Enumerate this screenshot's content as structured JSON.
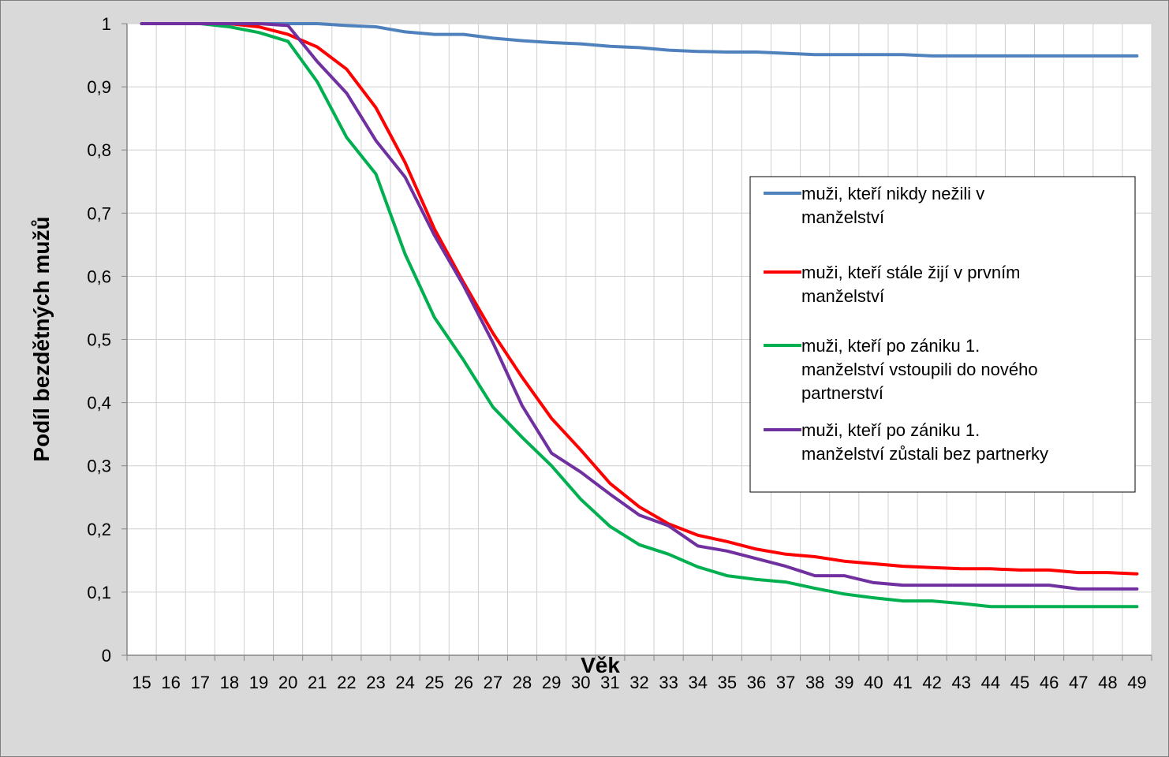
{
  "chart_data": {
    "type": "line",
    "title": "",
    "xlabel": "Věk",
    "ylabel": "Podíl bezdětných mužů",
    "x": [
      15,
      16,
      17,
      18,
      19,
      20,
      21,
      22,
      23,
      24,
      25,
      26,
      27,
      28,
      29,
      30,
      31,
      32,
      33,
      34,
      35,
      36,
      37,
      38,
      39,
      40,
      41,
      42,
      43,
      44,
      45,
      46,
      47,
      48,
      49
    ],
    "x_tick_labels": [
      "15",
      "16",
      "17",
      "18",
      "19",
      "20",
      "21",
      "22",
      "23",
      "24",
      "25",
      "26",
      "27",
      "28",
      "29",
      "30",
      "31",
      "32",
      "33",
      "34",
      "35",
      "36",
      "37",
      "38",
      "39",
      "40",
      "41",
      "42",
      "43",
      "44",
      "45",
      "46",
      "47",
      "48",
      "49"
    ],
    "ylim": [
      0,
      1
    ],
    "y_tick_labels": [
      "0",
      "0,1",
      "0,2",
      "0,3",
      "0,4",
      "0,5",
      "0,6",
      "0,7",
      "0,8",
      "0,9",
      "1"
    ],
    "grid": true,
    "legend_position": "right-middle",
    "series": [
      {
        "name": "muži, kteří nikdy nežili v manželství",
        "legend_lines": [
          "muži, kteří nikdy nežili v",
          "manželství"
        ],
        "color": "#4f81bd",
        "values": [
          1,
          1,
          1,
          1,
          1,
          1,
          1,
          0.997,
          0.995,
          0.987,
          0.983,
          0.983,
          0.977,
          0.973,
          0.97,
          0.968,
          0.964,
          0.962,
          0.958,
          0.956,
          0.955,
          0.955,
          0.953,
          0.951,
          0.951,
          0.951,
          0.951,
          0.949,
          0.949,
          0.949,
          0.949,
          0.949,
          0.949,
          0.949,
          0.949
        ]
      },
      {
        "name": "muži, kteří stále žijí v prvním manželství",
        "legend_lines": [
          "muži, kteří stále žijí v prvním",
          "manželství"
        ],
        "color": "#ff0000",
        "values": [
          1,
          1,
          1,
          1,
          0.995,
          0.983,
          0.963,
          0.928,
          0.867,
          0.78,
          0.675,
          0.59,
          0.51,
          0.44,
          0.375,
          0.325,
          0.272,
          0.235,
          0.208,
          0.19,
          0.18,
          0.168,
          0.16,
          0.156,
          0.149,
          0.145,
          0.141,
          0.139,
          0.137,
          0.137,
          0.135,
          0.135,
          0.131,
          0.131,
          0.129
        ]
      },
      {
        "name": "muži, kteří po zániku 1. manželství vstoupili do nového partnerství",
        "legend_lines": [
          "muži, kteří po zániku 1.",
          "manželství vstoupili do nového",
          "partnerství"
        ],
        "color": "#00b050",
        "values": [
          1,
          1,
          1,
          0.995,
          0.986,
          0.972,
          0.908,
          0.82,
          0.762,
          0.635,
          0.535,
          0.467,
          0.393,
          0.345,
          0.3,
          0.247,
          0.204,
          0.175,
          0.16,
          0.14,
          0.126,
          0.12,
          0.116,
          0.106,
          0.097,
          0.091,
          0.086,
          0.086,
          0.082,
          0.077,
          0.077,
          0.077,
          0.077,
          0.077,
          0.077
        ]
      },
      {
        "name": "muži, kteří po zániku 1. manželství zůstali bez partnerky",
        "legend_lines": [
          "muži, kteří po zániku 1.",
          "manželství zůstali bez partnerky"
        ],
        "color": "#7030a0",
        "values": [
          1,
          1,
          1,
          1,
          1,
          0.997,
          0.94,
          0.89,
          0.815,
          0.757,
          0.665,
          0.585,
          0.495,
          0.395,
          0.32,
          0.29,
          0.255,
          0.222,
          0.205,
          0.173,
          0.165,
          0.153,
          0.141,
          0.126,
          0.126,
          0.115,
          0.111,
          0.111,
          0.111,
          0.111,
          0.111,
          0.111,
          0.105,
          0.105,
          0.105
        ]
      }
    ]
  }
}
